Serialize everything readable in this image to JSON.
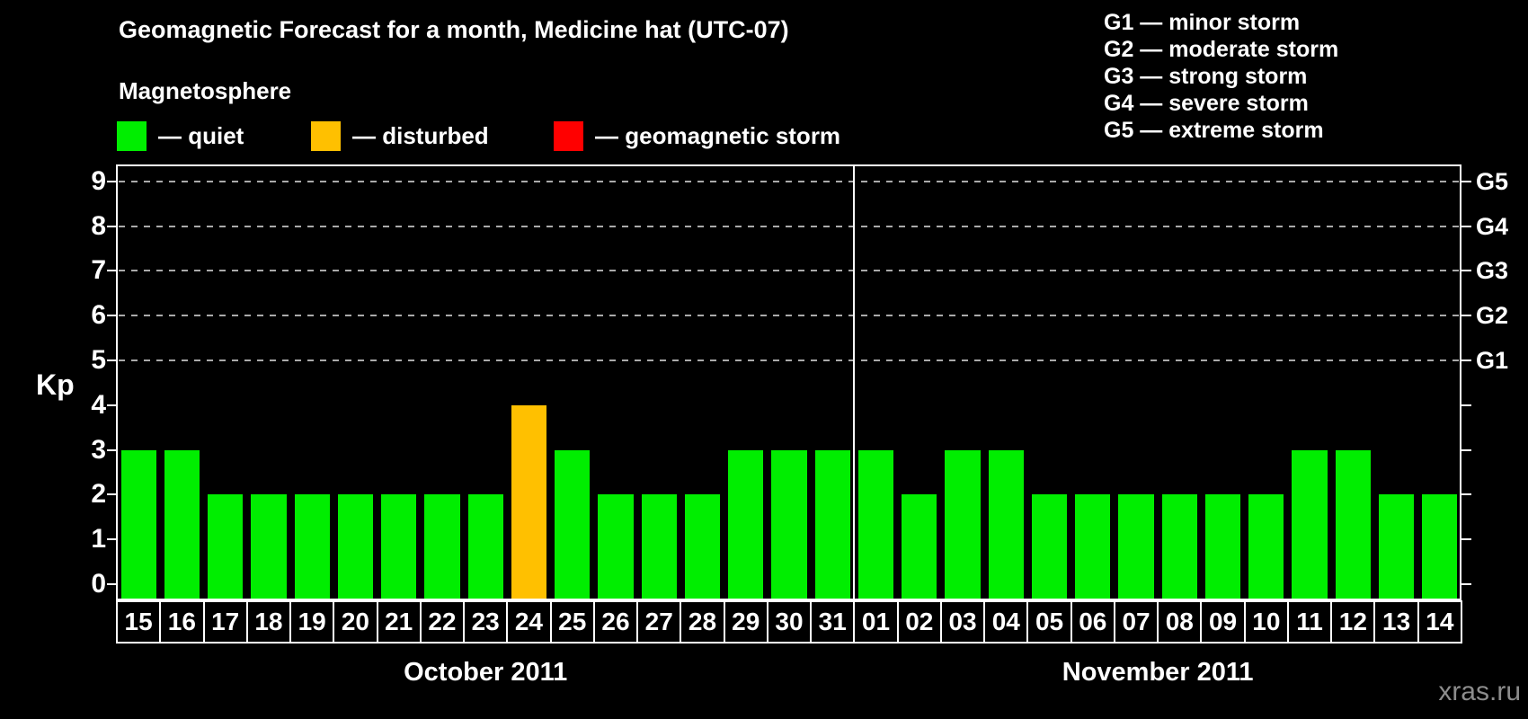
{
  "header": {
    "title": "Geomagnetic Forecast for a month, Medicine hat (UTC-07)",
    "subtitle": "Magnetosphere"
  },
  "legend": {
    "items": [
      {
        "name": "quiet",
        "label": "— quiet",
        "color": "#00ee00"
      },
      {
        "name": "disturbed",
        "label": "— disturbed",
        "color": "#ffc000"
      },
      {
        "name": "geomagnetic-storm",
        "label": "— geomagnetic storm",
        "color": "#ff0000"
      }
    ]
  },
  "storm_scale_legend": [
    "G1 — minor storm",
    "G2 — moderate storm",
    "G3 — strong storm",
    "G4 — severe storm",
    "G5 — extreme storm"
  ],
  "watermark": "xras.ru",
  "chart_data": {
    "type": "bar",
    "title": "Geomagnetic Forecast for a month, Medicine hat (UTC-07)",
    "ylabel": "Kp",
    "ylim": [
      0,
      9
    ],
    "yticks": [
      0,
      1,
      2,
      3,
      4,
      5,
      6,
      7,
      8,
      9
    ],
    "gridlines_at": [
      5,
      6,
      7,
      8,
      9
    ],
    "grid": "dashed horizontal at G-storm levels only",
    "right_axis_labels": [
      {
        "kp": 5,
        "label": "G1"
      },
      {
        "kp": 6,
        "label": "G2"
      },
      {
        "kp": 7,
        "label": "G3"
      },
      {
        "kp": 8,
        "label": "G4"
      },
      {
        "kp": 9,
        "label": "G5"
      }
    ],
    "months": [
      {
        "label": "October 2011",
        "days": 17
      },
      {
        "label": "November 2011",
        "days": 14
      }
    ],
    "categories": [
      "15",
      "16",
      "17",
      "18",
      "19",
      "20",
      "21",
      "22",
      "23",
      "24",
      "25",
      "26",
      "27",
      "28",
      "29",
      "30",
      "31",
      "01",
      "02",
      "03",
      "04",
      "05",
      "06",
      "07",
      "08",
      "09",
      "10",
      "11",
      "12",
      "13",
      "14"
    ],
    "values": [
      3,
      3,
      2,
      2,
      2,
      2,
      2,
      2,
      2,
      4,
      3,
      2,
      2,
      2,
      3,
      3,
      3,
      3,
      2,
      3,
      3,
      2,
      2,
      2,
      2,
      2,
      2,
      3,
      3,
      2,
      2
    ],
    "statuses": [
      "quiet",
      "quiet",
      "quiet",
      "quiet",
      "quiet",
      "quiet",
      "quiet",
      "quiet",
      "quiet",
      "disturbed",
      "quiet",
      "quiet",
      "quiet",
      "quiet",
      "quiet",
      "quiet",
      "quiet",
      "quiet",
      "quiet",
      "quiet",
      "quiet",
      "quiet",
      "quiet",
      "quiet",
      "quiet",
      "quiet",
      "quiet",
      "quiet",
      "quiet",
      "quiet",
      "quiet"
    ],
    "status_colors": {
      "quiet": "#00ee00",
      "disturbed": "#ffc000",
      "geomagnetic-storm": "#ff0000"
    }
  }
}
